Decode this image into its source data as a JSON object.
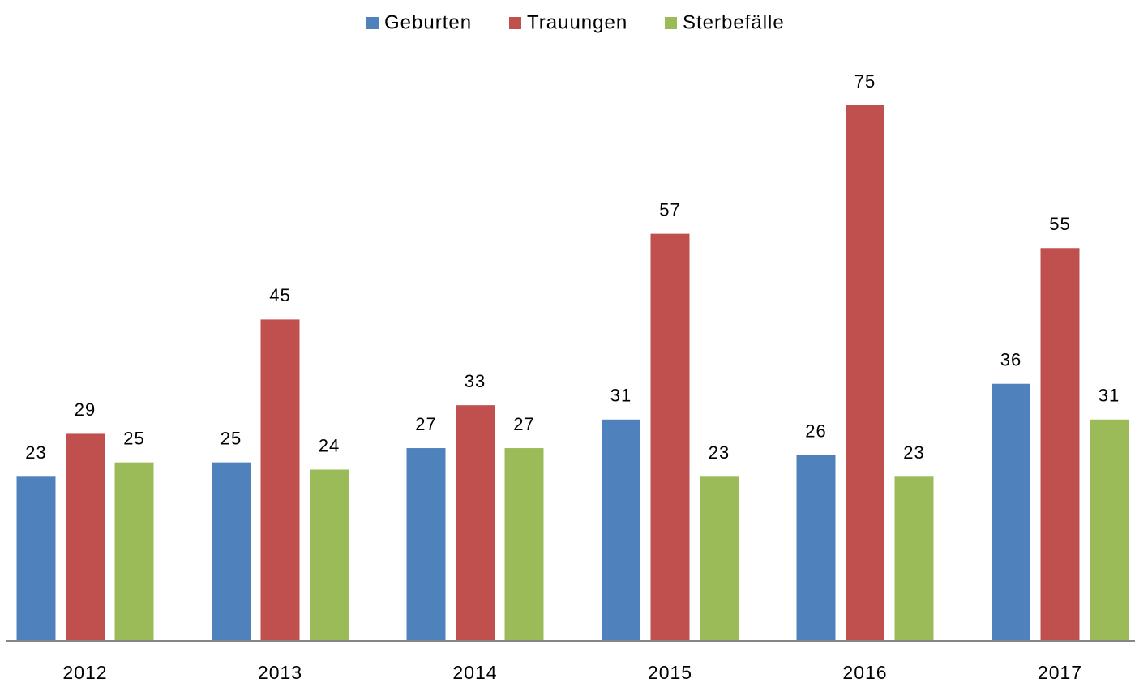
{
  "chart_data": {
    "type": "bar",
    "categories": [
      "2012",
      "2013",
      "2014",
      "2015",
      "2016",
      "2017"
    ],
    "series": [
      {
        "name": "Geburten",
        "color": "#4f81bd",
        "values": [
          23,
          25,
          27,
          31,
          26,
          36
        ]
      },
      {
        "name": "Trauungen",
        "color": "#c0504d",
        "values": [
          29,
          45,
          33,
          57,
          75,
          55
        ]
      },
      {
        "name": "Sterbefälle",
        "color": "#9bbb59",
        "values": [
          25,
          24,
          27,
          23,
          23,
          31
        ]
      }
    ],
    "legend": "top"
  }
}
